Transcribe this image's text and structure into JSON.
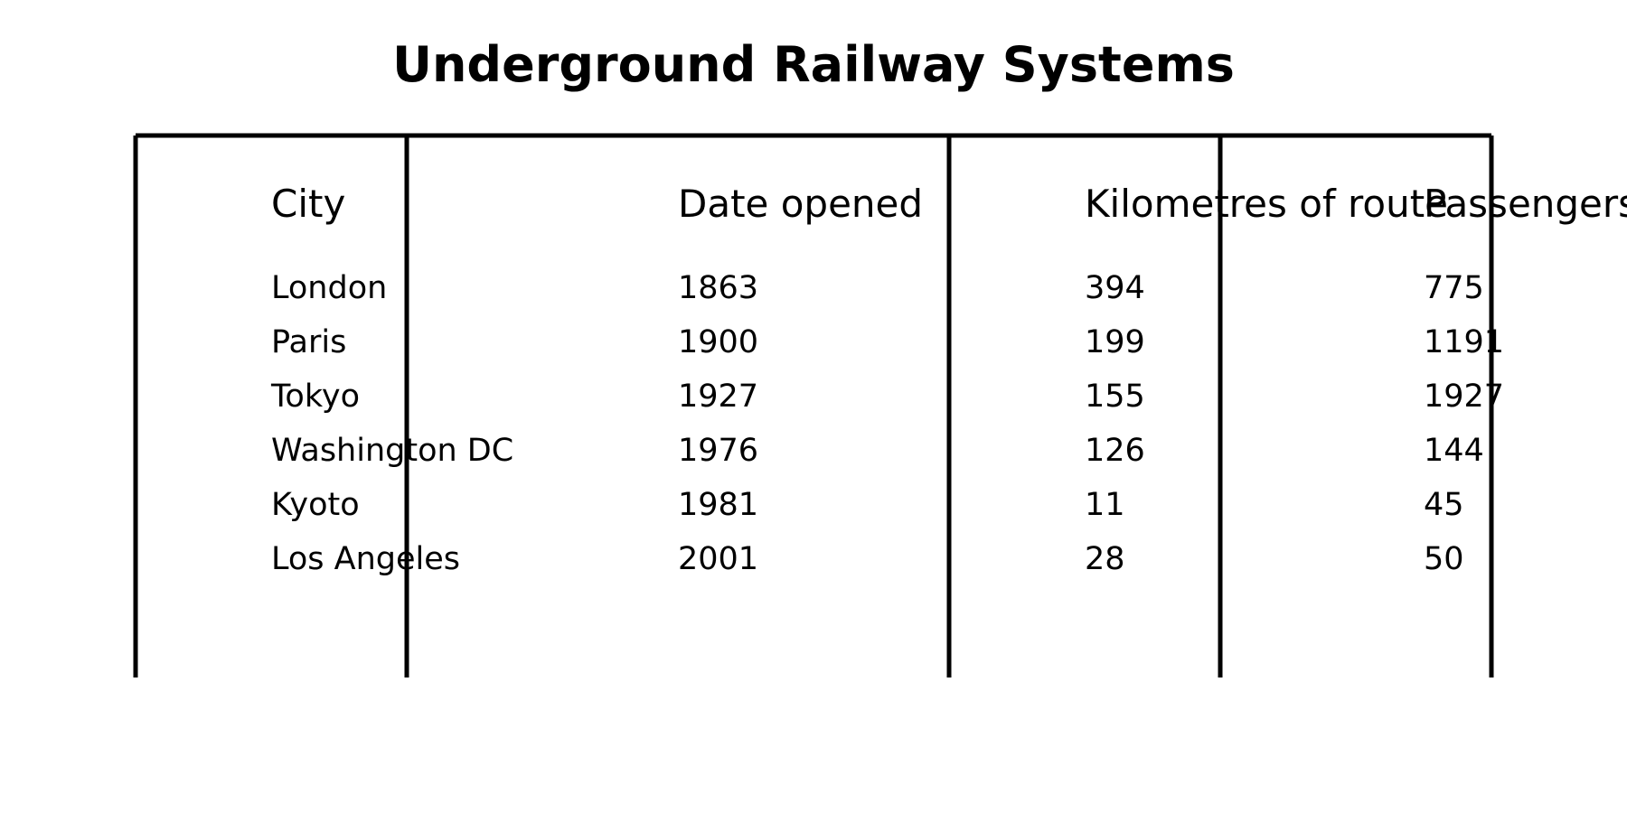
{
  "chart_data": {
    "type": "table",
    "title": "Underground Railway Systems",
    "columns": [
      "City",
      "Date opened",
      "Kilometres of route",
      "Passengers per year (in millions)"
    ],
    "rows": [
      [
        "London",
        "1863",
        "394",
        "775"
      ],
      [
        "Paris",
        "1900",
        "199",
        "1191"
      ],
      [
        "Tokyo",
        "1927",
        "155",
        "1927"
      ],
      [
        "Washington DC",
        "1976",
        "126",
        "144"
      ],
      [
        "Kyoto",
        "1981",
        "11",
        "45"
      ],
      [
        "Los Angeles",
        "2001",
        "28",
        "50"
      ]
    ]
  }
}
